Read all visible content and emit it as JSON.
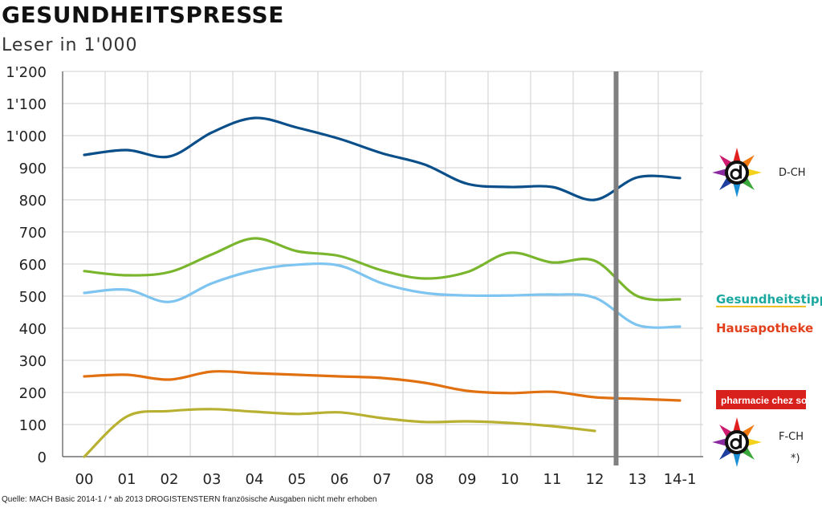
{
  "header": {
    "title": "GESUNDHEITSPRESSE",
    "subtitle": "Leser in 1'000"
  },
  "footer": {
    "source": "Quelle: MACH Basic 2014-1 /  * ab 2013 DROGISTENSTERN französische Ausgaben nicht mehr erhoben"
  },
  "chart_data": {
    "type": "line",
    "title": "GESUNDHEITSPRESSE",
    "subtitle": "Leser in 1'000",
    "categories": [
      "00",
      "01",
      "02",
      "03",
      "04",
      "05",
      "06",
      "07",
      "08",
      "09",
      "10",
      "11",
      "12",
      "13",
      "14-1"
    ],
    "ylim": [
      0,
      1200
    ],
    "yticks": [
      0,
      100,
      200,
      300,
      400,
      500,
      600,
      700,
      800,
      900,
      1000,
      1100,
      1200
    ],
    "ytick_labels": [
      "0",
      "100",
      "200",
      "300",
      "400",
      "500",
      "600",
      "700",
      "800",
      "900",
      "1'000",
      "1'100",
      "1'200"
    ],
    "grid": true,
    "series": [
      {
        "name": "D-CH",
        "color": "#0a4f8a",
        "values": [
          940,
          955,
          935,
          1010,
          1055,
          1025,
          990,
          945,
          910,
          850,
          840,
          840,
          800,
          870,
          868
        ]
      },
      {
        "name": "Gesundheitstipp",
        "color": "#7ab52e",
        "values": [
          578,
          565,
          575,
          630,
          680,
          640,
          625,
          580,
          555,
          575,
          635,
          605,
          610,
          500,
          490
        ]
      },
      {
        "name": "Hausapotheke",
        "color": "#7ec4f0",
        "values": [
          510,
          520,
          482,
          540,
          580,
          598,
          595,
          540,
          510,
          502,
          502,
          505,
          495,
          410,
          405
        ]
      },
      {
        "name": "pharmacie chez soi",
        "color": "#e07010",
        "values": [
          250,
          255,
          240,
          265,
          260,
          255,
          250,
          245,
          230,
          205,
          198,
          202,
          185,
          180,
          175
        ]
      },
      {
        "name": "F-CH",
        "color": "#b8b030",
        "values": [
          0,
          125,
          142,
          148,
          140,
          133,
          138,
          120,
          108,
          110,
          105,
          95,
          80,
          null,
          null
        ]
      }
    ],
    "break_marker": {
      "between": [
        "12",
        "13"
      ],
      "color": "#808080"
    },
    "legend": {
      "placement": "right",
      "entries": [
        {
          "series": "D-CH",
          "label": "D-CH",
          "icon": "drogistenstern-logo"
        },
        {
          "series": "Gesundheitstipp",
          "brand_text": "Gesundheitstipp",
          "icon": "gesundheitstipp-logo"
        },
        {
          "series": "Hausapotheke",
          "brand_text": "Hausapotheke",
          "icon": "hausapotheke-logo"
        },
        {
          "series": "pharmacie chez soi",
          "brand_text": "pharmacie chez soi",
          "icon": "pharmacie-chez-soi-logo"
        },
        {
          "series": "F-CH",
          "label": "F-CH",
          "note": "*)",
          "icon": "drogistenstern-logo"
        }
      ]
    }
  }
}
